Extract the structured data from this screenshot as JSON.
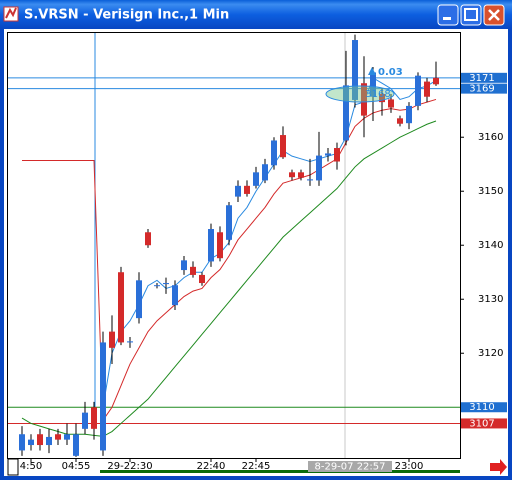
{
  "chart_data": {
    "type": "candlestick",
    "title": "S.VRSN - Verisign Inc.,1 Min",
    "categories": [
      null,
      "4:50",
      null,
      null,
      null,
      null,
      "04:55",
      null,
      null,
      null,
      null,
      null,
      "29-22:30",
      null,
      null,
      null,
      null,
      null,
      null,
      null,
      null,
      "22:40",
      null,
      null,
      null,
      null,
      "22:45",
      null,
      null,
      null,
      null,
      null,
      null,
      null,
      null,
      null,
      null,
      null,
      null,
      null,
      null,
      null,
      null,
      "23:00",
      null,
      null,
      null
    ],
    "open": [
      3102,
      3103,
      3105,
      3103,
      3105,
      3104,
      3101,
      3106,
      3110,
      3102,
      3124,
      3135,
      3122,
      3126.5,
      3142.4,
      3132.5,
      3132.8,
      3128.9,
      3135.4,
      3136,
      3134.5,
      3137,
      3142.4,
      3141,
      3149,
      3151,
      3151,
      3152,
      3154.8,
      3160.4,
      3153.5,
      3153.5,
      3152,
      3152,
      3156.6,
      3158,
      3159.4,
      3166.9,
      3170,
      3167.5,
      3168,
      3167,
      3163.5,
      3162.6,
      3165.8,
      3170.3,
      3171
    ],
    "high": [
      3106.5,
      3105,
      3106,
      3106,
      3106,
      3107,
      3107,
      3111,
      3111,
      3124,
      3127,
      3136,
      3123,
      3135,
      3143,
      3133,
      3134,
      3133.5,
      3138,
      3137,
      3135,
      3144,
      3143.5,
      3148,
      3152,
      3152,
      3154.5,
      3156,
      3160,
      3162,
      3154,
      3154,
      3156,
      3161,
      3158,
      3159,
      3176,
      3179,
      3175,
      3173,
      3169,
      3168,
      3164,
      3166.5,
      3172,
      3171,
      3174
    ],
    "low": [
      3101,
      3102,
      3102,
      3101.5,
      3103,
      3103,
      3100.8,
      3105,
      3104,
      3101,
      3118,
      3121.5,
      3121,
      3125.5,
      3139.5,
      3132,
      3131,
      3128,
      3134.5,
      3134,
      3132.5,
      3136,
      3137,
      3140,
      3148,
      3149,
      3150.5,
      3151.5,
      3154,
      3156,
      3152,
      3152,
      3151,
      3151,
      3155.5,
      3154,
      3158.5,
      3165.5,
      3160,
      3163,
      3164,
      3164.5,
      3162,
      3161.5,
      3165,
      3166.5,
      3169.5
    ],
    "close": [
      3105,
      3104,
      3103,
      3104.5,
      3104,
      3105,
      3105,
      3109,
      3106,
      3122,
      3121,
      3122,
      3122.2,
      3133.5,
      3140,
      3132.6,
      3133,
      3132.6,
      3137.2,
      3134.5,
      3133,
      3143,
      3137.6,
      3147.4,
      3151,
      3149.5,
      3153.5,
      3155,
      3159.4,
      3156.3,
      3152.6,
      3152.5,
      3152.2,
      3156.6,
      3157,
      3155.5,
      3169.6,
      3178,
      3164,
      3172,
      3166.5,
      3165.5,
      3162.5,
      3165.8,
      3171.4,
      3167.5,
      3169.8
    ],
    "up_color": "#2a6fd8",
    "down_color": "#d42a2a",
    "series": [
      {
        "color": "#2a8ae0",
        "values": [
          null,
          null,
          null,
          null,
          null,
          null,
          null,
          null,
          null,
          3110,
          3120,
          3124,
          3126,
          3129,
          3132.5,
          3133.5,
          3132,
          3132.5,
          3134,
          3135,
          3135,
          3137.5,
          3138.5,
          3140.5,
          3145,
          3147,
          3150,
          3152.5,
          3155,
          3157.5,
          3156.5,
          3156,
          3155.5,
          3156,
          3156.5,
          3157,
          3160,
          3166,
          3166.5,
          3171,
          3170,
          3169,
          3167,
          3167.5,
          3169,
          3169.5,
          3170.5
        ]
      },
      {
        "color": "#d42a2a",
        "values": [
          3155.7,
          3155.7,
          3155.7,
          3155.7,
          3155.7,
          3155.7,
          3155.7,
          3155.7,
          3155.7,
          3107.6,
          3110,
          3114,
          3118,
          3121,
          3124,
          3126,
          3127.5,
          3129,
          3130.5,
          3131.5,
          3132,
          3134,
          3135.5,
          3138,
          3141,
          3143,
          3145,
          3147,
          3149.5,
          3151.5,
          3152,
          3152.5,
          3153,
          3154,
          3155,
          3156,
          3159,
          3162,
          3163.5,
          3164.5,
          3165,
          3165.3,
          3165,
          3165.2,
          3166,
          3166.5,
          3167
        ]
      },
      {
        "color": "#1f8a1f",
        "values": [
          3108,
          3107,
          3106.5,
          3106,
          3105.5,
          3105,
          3105,
          3105,
          3104.8,
          3104.6,
          3105.5,
          3107,
          3108.5,
          3110,
          3111.5,
          3113.5,
          3115.5,
          3117.5,
          3119.5,
          3121.5,
          3123.5,
          3125.5,
          3127.5,
          3129.5,
          3131.5,
          3133.5,
          3135.5,
          3137.5,
          3139.5,
          3141.5,
          3143,
          3144.5,
          3146,
          3147.5,
          3149,
          3150.5,
          3152.5,
          3154.5,
          3156,
          3157,
          3158,
          3159,
          3160,
          3160.8,
          3161.6,
          3162.4,
          3163
        ]
      }
    ],
    "price_lines": [
      {
        "value": 3171,
        "color": "#2a8ae0",
        "label_color": "#1f6fd0"
      },
      {
        "value": 3169,
        "color": "#2a8ae0",
        "label_color": "#1f6fd0"
      },
      {
        "value": 3110,
        "color": "#1f8a1f",
        "label_color": "#1f6fd0"
      },
      {
        "value": 3107,
        "color": "#d42a2a",
        "label_color": "#d42a2a"
      }
    ],
    "crosshair_label": "8-29-07 22:57",
    "cursor_price": 3168,
    "change": 0.03,
    "ylim": [
      3100.6,
      3179.3
    ],
    "yticks": [
      3110,
      3120,
      3130,
      3140,
      3150,
      3160
    ],
    "grid": false
  }
}
